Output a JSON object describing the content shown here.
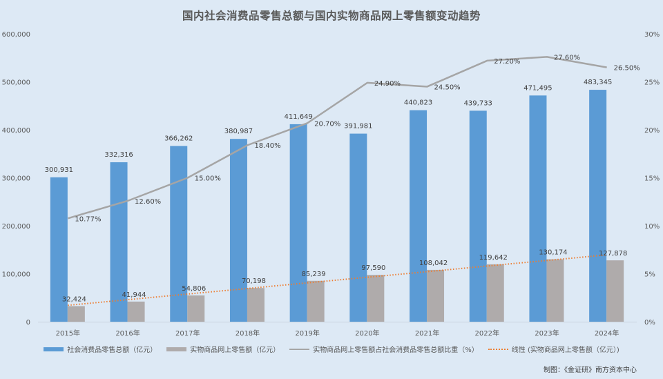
{
  "title": "国内社会消费品零售总额与国内实物商品网上零售额变动趋势",
  "credit": "制图：《金证研》南方资本中心",
  "legend": [
    {
      "label": "社会消费品零售总额（亿元）",
      "type": "bar",
      "color": "#5b9bd5"
    },
    {
      "label": "实物商品网上零售额（亿元）",
      "type": "bar",
      "color": "#afabab"
    },
    {
      "label": "实物商品网上零售额占社会消费品零售总额比重（%）",
      "type": "line",
      "color": "#a5a5a5"
    },
    {
      "label": "线性 (实物商品网上零售额（亿元）)",
      "type": "dotted-line",
      "color": "#ed7d31"
    }
  ],
  "chart_data": {
    "type": "bar",
    "title": "国内社会消费品零售总额与国内实物商品网上零售额变动趋势",
    "categories": [
      "2015年",
      "2016年",
      "2017年",
      "2018年",
      "2019年",
      "2020年",
      "2021年",
      "2022年",
      "2023年",
      "2024年"
    ],
    "series": [
      {
        "name": "社会消费品零售总额（亿元）",
        "type": "bar",
        "axis": "left",
        "color": "#5b9bd5",
        "values": [
          300931,
          332316,
          366262,
          380987,
          411649,
          391981,
          440823,
          439733,
          471495,
          483345
        ],
        "labels": [
          "300,931",
          "332,316",
          "366,262",
          "380,987",
          "411,649",
          "391,981",
          "440,823",
          "439,733",
          "471,495",
          "483,345"
        ]
      },
      {
        "name": "实物商品网上零售额（亿元）",
        "type": "bar",
        "axis": "left",
        "color": "#afabab",
        "values": [
          32424,
          41944,
          54806,
          70198,
          85239,
          97590,
          108042,
          119642,
          130174,
          127878
        ],
        "labels": [
          "32,424",
          "41,944",
          "54,806",
          "70,198",
          "85,239",
          "97,590",
          "108,042",
          "119,642",
          "130,174",
          "127,878"
        ]
      },
      {
        "name": "实物商品网上零售额占社会消费品零售总额比重（%）",
        "type": "line",
        "axis": "right",
        "color": "#a5a5a5",
        "values": [
          10.77,
          12.6,
          15.0,
          18.4,
          20.7,
          24.9,
          24.5,
          27.2,
          27.6,
          26.5
        ],
        "labels": [
          "10.77%",
          "12.60%",
          "15.00%",
          "18.40%",
          "20.70%",
          "24.90%",
          "24.50%",
          "27.20%",
          "27.60%",
          "26.50%"
        ]
      },
      {
        "name": "线性 (实物商品网上零售额（亿元）)",
        "type": "trendline",
        "axis": "left",
        "color": "#ed7d31"
      }
    ],
    "left_axis": {
      "min": 0,
      "max": 600000,
      "step": 100000,
      "ticks": [
        "0",
        "100,000",
        "200,000",
        "300,000",
        "400,000",
        "500,000",
        "600,000"
      ]
    },
    "right_axis": {
      "min": 0,
      "max": 30,
      "step": 5,
      "ticks": [
        "0%",
        "5%",
        "10%",
        "15%",
        "20%",
        "25%",
        "30%"
      ]
    },
    "xlabel": "",
    "ylabel": "",
    "grid": false,
    "legend_position": "bottom"
  }
}
